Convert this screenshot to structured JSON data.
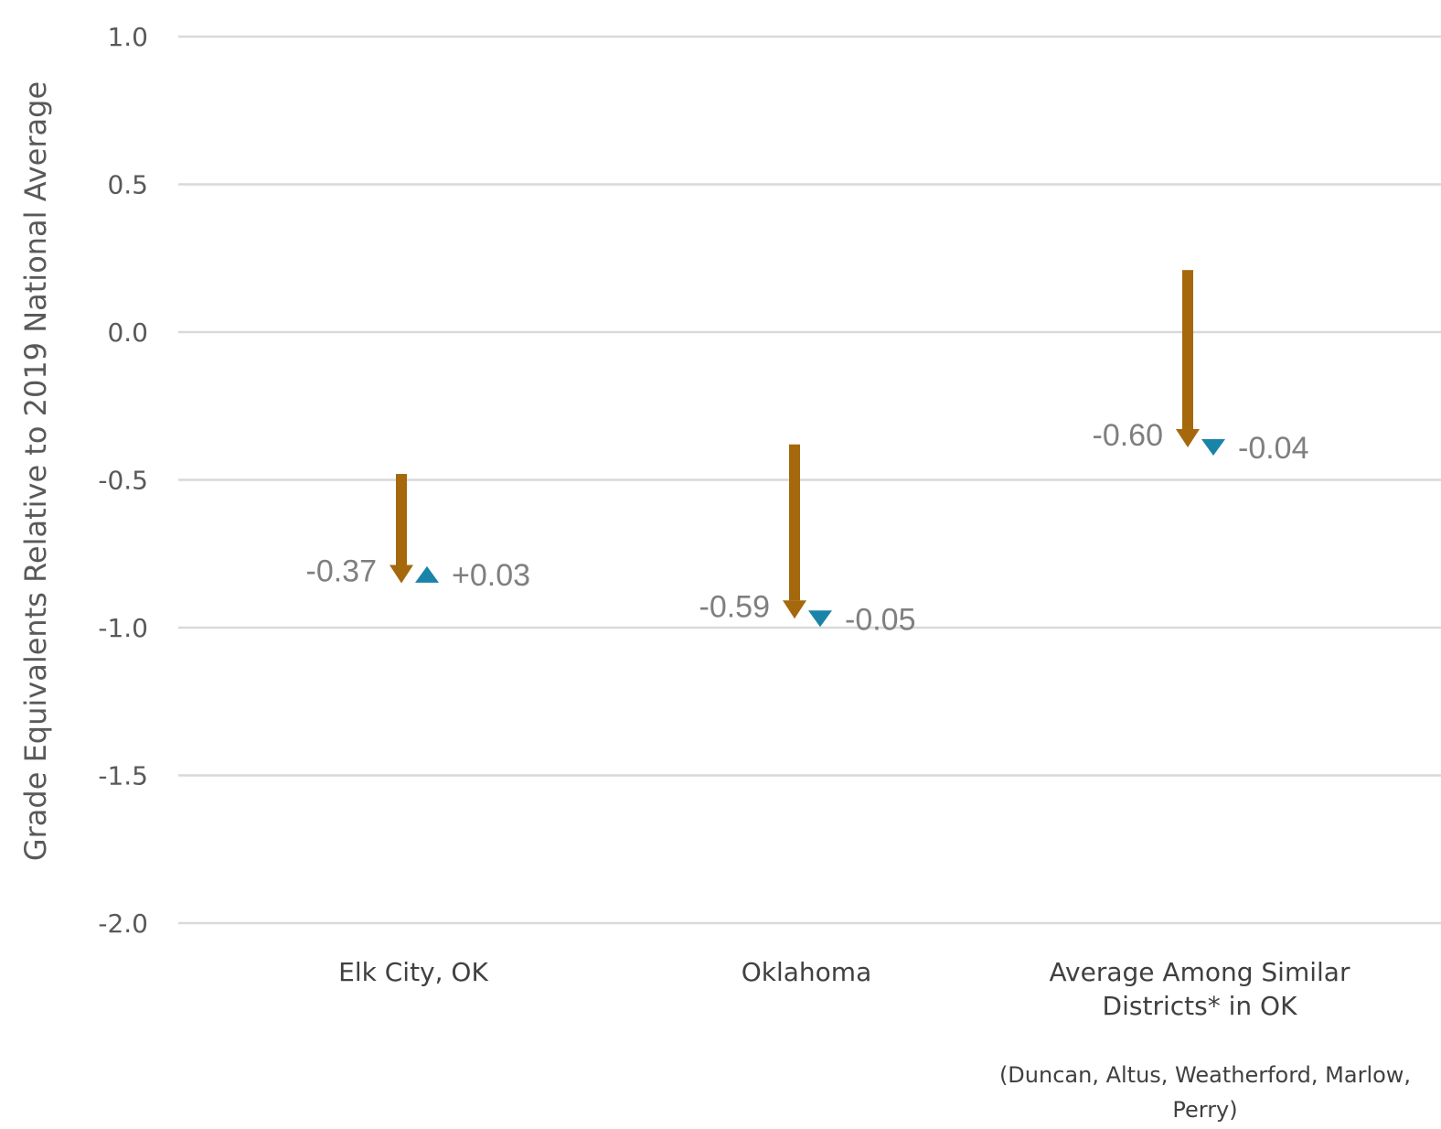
{
  "chart_data": {
    "type": "arrow",
    "ylabel": "Grade Equivalents Relative to 2019 National Average",
    "ylim": [
      -2.0,
      1.0
    ],
    "yticks": [
      1.0,
      0.5,
      0.0,
      -0.5,
      -1.0,
      -1.5,
      -2.0
    ],
    "ytick_labels": [
      "1.0",
      "0.5",
      "0.0",
      "-0.5",
      "-1.0",
      "-1.5",
      "-2.0"
    ],
    "grid": true,
    "categories": [
      {
        "label_lines": [
          "Elk City, OK"
        ]
      },
      {
        "label_lines": [
          "Oklahoma"
        ]
      },
      {
        "label_lines": [
          "Average Among Similar",
          "Districts* in OK"
        ]
      }
    ],
    "note_lines": [
      "(Duncan, Altus, Weatherford, Marlow,",
      "Perry)"
    ],
    "series": [
      {
        "name": "",
        "color": "#a5680c",
        "marker": "arrow",
        "start": [
          -0.48,
          -0.38,
          0.21
        ],
        "end": [
          -0.85,
          -0.97,
          -0.39
        ],
        "change_labels": [
          "-0.37",
          "-0.59",
          "-0.60"
        ]
      },
      {
        "name": "",
        "color": "#1a84a8",
        "marker": "triangle",
        "start": [
          -0.85,
          -0.97,
          -0.39
        ],
        "end": [
          -0.82,
          -1.02,
          -0.43
        ],
        "change_labels": [
          "+0.03",
          "-0.05",
          "-0.04"
        ]
      }
    ]
  }
}
